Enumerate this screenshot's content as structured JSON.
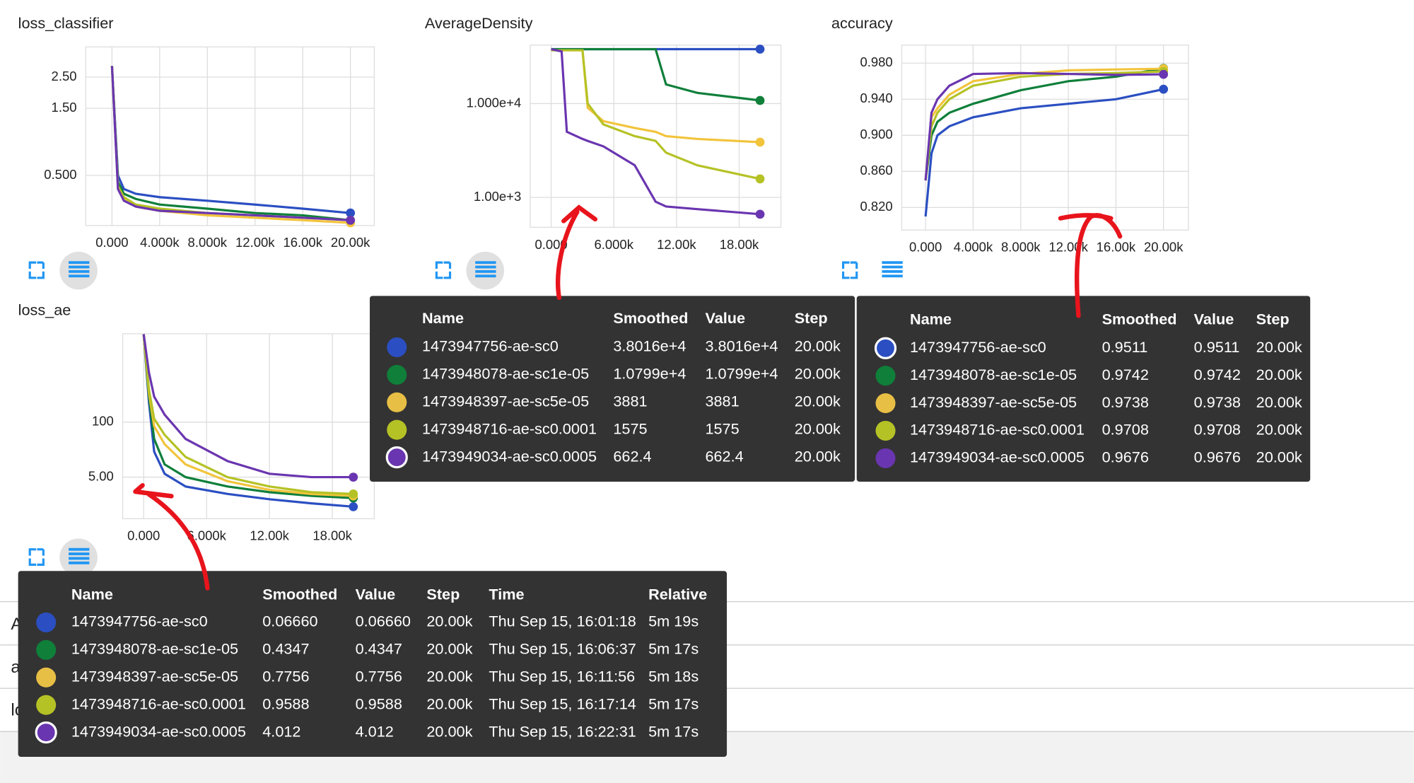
{
  "charts": [
    {
      "title": "loss_classifier",
      "type": "line",
      "log_scale": true,
      "xlim": [
        -2200,
        22000
      ],
      "ylim": [
        0.22,
        4.1
      ],
      "xticks": [
        {
          "value": 0,
          "label": "0.000"
        },
        {
          "value": 4000,
          "label": "4.000k"
        },
        {
          "value": 8000,
          "label": "8.000k"
        },
        {
          "value": 12000,
          "label": "12.00k"
        },
        {
          "value": 16000,
          "label": "16.00k"
        },
        {
          "value": 20000,
          "label": "20.00k"
        }
      ],
      "yticks": [
        {
          "value": 2.5,
          "label": "2.50"
        },
        {
          "value": 1.5,
          "label": "1.50"
        },
        {
          "value": 0.5,
          "label": "0.500"
        }
      ],
      "x": [
        0,
        500,
        1000,
        2000,
        4000,
        8000,
        12000,
        16000,
        20000
      ],
      "series": [
        {
          "color": "#2b4fc2",
          "values": [
            3.0,
            0.5,
            0.4,
            0.37,
            0.35,
            0.33,
            0.31,
            0.29,
            0.27
          ]
        },
        {
          "color": "#0f7f3a",
          "values": [
            3.0,
            0.45,
            0.37,
            0.34,
            0.31,
            0.29,
            0.27,
            0.26,
            0.24
          ]
        },
        {
          "color": "#f2c43c",
          "values": [
            3.0,
            0.42,
            0.34,
            0.3,
            0.28,
            0.26,
            0.25,
            0.24,
            0.23
          ]
        },
        {
          "color": "#b5c225",
          "values": [
            3.0,
            0.42,
            0.35,
            0.31,
            0.29,
            0.27,
            0.26,
            0.25,
            0.24
          ]
        },
        {
          "color": "#6a35b0",
          "values": [
            3.0,
            0.4,
            0.33,
            0.3,
            0.28,
            0.27,
            0.26,
            0.25,
            0.24
          ]
        }
      ]
    },
    {
      "title": "AverageDensity",
      "type": "line",
      "log_scale": true,
      "xlim": [
        -2000,
        22000
      ],
      "ylim": [
        480,
        42000
      ],
      "xticks": [
        {
          "value": 0,
          "label": "0.000"
        },
        {
          "value": 6000,
          "label": "6.000k"
        },
        {
          "value": 12000,
          "label": "12.00k"
        },
        {
          "value": 18000,
          "label": "18.00k"
        }
      ],
      "yticks": [
        {
          "value": 10000,
          "label": "1.000e+4"
        },
        {
          "value": 1000,
          "label": "1.00e+3"
        }
      ],
      "x": [
        0,
        1000,
        1500,
        3000,
        3500,
        5000,
        8000,
        10000,
        11000,
        14000,
        20000
      ],
      "series": [
        {
          "color": "#2b4fc2",
          "values": [
            38016,
            38016,
            38016,
            38016,
            38016,
            38016,
            38016,
            38016,
            38016,
            38016,
            38016
          ]
        },
        {
          "color": "#0f7f3a",
          "values": [
            38000,
            38000,
            38000,
            38000,
            38000,
            38000,
            38000,
            38000,
            16000,
            13000,
            10799
          ]
        },
        {
          "color": "#f2c43c",
          "values": [
            37000,
            37000,
            37000,
            37000,
            9000,
            6500,
            5500,
            5000,
            4500,
            4200,
            3881
          ]
        },
        {
          "color": "#b5c225",
          "values": [
            37000,
            37000,
            37000,
            37000,
            10000,
            6000,
            4500,
            4000,
            3000,
            2200,
            1575
          ]
        },
        {
          "color": "#6a35b0",
          "values": [
            38000,
            36000,
            5000,
            4200,
            4000,
            3500,
            2200,
            900,
            800,
            750,
            662.4
          ]
        }
      ]
    },
    {
      "title": "accuracy",
      "type": "line",
      "log_scale": false,
      "xlim": [
        -2000,
        22100
      ],
      "ylim": [
        0.795,
        1.0
      ],
      "xticks": [
        {
          "value": 0,
          "label": "0.000"
        },
        {
          "value": 4000,
          "label": "4.000k"
        },
        {
          "value": 8000,
          "label": "8.000k"
        },
        {
          "value": 12000,
          "label": "12.00k"
        },
        {
          "value": 16000,
          "label": "16.00k"
        },
        {
          "value": 20000,
          "label": "20.00k"
        }
      ],
      "yticks": [
        {
          "value": 0.98,
          "label": "0.980"
        },
        {
          "value": 0.94,
          "label": "0.940"
        },
        {
          "value": 0.9,
          "label": "0.900"
        },
        {
          "value": 0.86,
          "label": "0.860"
        },
        {
          "value": 0.82,
          "label": "0.820"
        }
      ],
      "x": [
        0,
        500,
        1000,
        2000,
        4000,
        8000,
        12000,
        16000,
        20000
      ],
      "series": [
        {
          "color": "#2b4fc2",
          "values": [
            0.81,
            0.88,
            0.9,
            0.91,
            0.92,
            0.93,
            0.935,
            0.94,
            0.9511
          ]
        },
        {
          "color": "#0f7f3a",
          "values": [
            0.85,
            0.9,
            0.915,
            0.925,
            0.935,
            0.95,
            0.96,
            0.965,
            0.9742
          ]
        },
        {
          "color": "#f2c43c",
          "values": [
            0.85,
            0.92,
            0.93,
            0.945,
            0.96,
            0.968,
            0.972,
            0.973,
            0.9738
          ]
        },
        {
          "color": "#b5c225",
          "values": [
            0.85,
            0.91,
            0.925,
            0.94,
            0.955,
            0.965,
            0.968,
            0.969,
            0.9708
          ]
        },
        {
          "color": "#6a35b0",
          "values": [
            0.85,
            0.925,
            0.94,
            0.955,
            0.968,
            0.969,
            0.968,
            0.967,
            0.9676
          ]
        }
      ]
    },
    {
      "title": "loss_ae",
      "type": "line",
      "log_scale": true,
      "xlim": [
        -2000,
        22000
      ],
      "ylim": [
        0.52,
        12300
      ],
      "xticks": [
        {
          "value": 0,
          "label": "0.000"
        },
        {
          "value": 6000,
          "label": "6.000k"
        },
        {
          "value": 12000,
          "label": "12.00k"
        },
        {
          "value": 18000,
          "label": "18.00k"
        }
      ],
      "yticks": [
        100,
        {
          "value": 5,
          "label": "5.00"
        }
      ],
      "x": [
        0,
        500,
        1000,
        2000,
        4000,
        8000,
        12000,
        16000,
        20000
      ],
      "series": [
        {
          "color": "#2b4fc2",
          "values": [
            12000,
            300,
            20,
            6,
            3,
            2,
            1.5,
            1.2,
            1.0
          ]
        },
        {
          "color": "#0f7f3a",
          "values": [
            12000,
            400,
            40,
            10,
            5,
            3,
            2.2,
            1.8,
            1.6
          ]
        },
        {
          "color": "#f2c43c",
          "values": [
            12000,
            500,
            80,
            30,
            10,
            4,
            2.5,
            2,
            1.8
          ]
        },
        {
          "color": "#b5c225",
          "values": [
            12000,
            600,
            120,
            50,
            15,
            5,
            3,
            2.2,
            2
          ]
        },
        {
          "color": "#6a35b0",
          "values": [
            12000,
            1500,
            400,
            150,
            40,
            12,
            6,
            5,
            5
          ]
        }
      ]
    }
  ],
  "list": [
    "AverageDensity",
    "accuracy",
    "loss"
  ],
  "tables": [
    {
      "columns": [
        "Name",
        "Smoothed",
        "Value",
        "Step"
      ],
      "colors": [
        "#2b4fc2",
        "#0f7f3a",
        "#e8bf45",
        "#b5c225",
        "#6a35b0"
      ],
      "rows": [
        [
          "1473947756-ae-sc0",
          "3.8016e+4",
          "3.8016e+4",
          "20.00k"
        ],
        [
          "1473948078-ae-sc1e-05",
          "1.0799e+4",
          "1.0799e+4",
          "20.00k"
        ],
        [
          "1473948397-ae-sc5e-05",
          "3881",
          "3881",
          "20.00k"
        ],
        [
          "1473948716-ae-sc0.0001",
          "1575",
          "1575",
          "20.00k"
        ],
        [
          "1473949034-ae-sc0.0005",
          "662.4",
          "662.4",
          "20.00k"
        ]
      ]
    },
    {
      "columns": [
        "Name",
        "Smoothed",
        "Value",
        "Step"
      ],
      "colors": [
        "#2b4fc2",
        "#0f7f3a",
        "#e8bf45",
        "#b5c225",
        "#6a35b0"
      ],
      "rows": [
        [
          "1473947756-ae-sc0",
          "0.9511",
          "0.9511",
          "20.00k"
        ],
        [
          "1473948078-ae-sc1e-05",
          "0.9742",
          "0.9742",
          "20.00k"
        ],
        [
          "1473948397-ae-sc5e-05",
          "0.9738",
          "0.9738",
          "20.00k"
        ],
        [
          "1473948716-ae-sc0.0001",
          "0.9708",
          "0.9708",
          "20.00k"
        ],
        [
          "1473949034-ae-sc0.0005",
          "0.9676",
          "0.9676",
          "20.00k"
        ]
      ]
    },
    {
      "columns": [
        "Name",
        "Smoothed",
        "Value",
        "Step",
        "Time",
        "Relative"
      ],
      "colors": [
        "#2b4fc2",
        "#0f7f3a",
        "#e8bf45",
        "#b5c225",
        "#6a35b0"
      ],
      "rows": [
        [
          "1473947756-ae-sc0",
          "0.06660",
          "0.06660",
          "20.00k",
          "Thu Sep 15, 16:01:18",
          "5m 19s"
        ],
        [
          "1473948078-ae-sc1e-05",
          "0.4347",
          "0.4347",
          "20.00k",
          "Thu Sep 15, 16:06:37",
          "5m 17s"
        ],
        [
          "1473948397-ae-sc5e-05",
          "0.7756",
          "0.7756",
          "20.00k",
          "Thu Sep 15, 16:11:56",
          "5m 18s"
        ],
        [
          "1473948716-ae-sc0.0001",
          "0.9588",
          "0.9588",
          "20.00k",
          "Thu Sep 15, 16:17:14",
          "5m 17s"
        ],
        [
          "1473949034-ae-sc0.0005",
          "4.012",
          "4.012",
          "20.00k",
          "Thu Sep 15, 16:22:31",
          "5m 17s"
        ]
      ]
    }
  ]
}
